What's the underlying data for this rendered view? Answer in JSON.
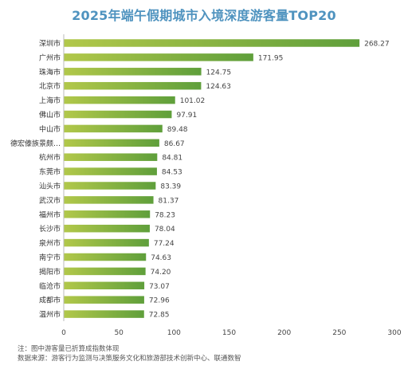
{
  "chart_data": {
    "type": "bar",
    "orientation": "horizontal",
    "title": "2025年端午假期城市入境深度游客量TOP20",
    "xlabel": "",
    "ylabel": "",
    "xlim": [
      0,
      300
    ],
    "xticks": [
      0,
      50,
      100,
      150,
      200,
      250,
      300
    ],
    "grid": false,
    "legend": "none",
    "bar_color_start": "#b2c84a",
    "bar_color_end": "#5f9f3b",
    "categories": [
      "深圳市",
      "广州市",
      "珠海市",
      "北京市",
      "上海市",
      "佛山市",
      "中山市",
      "德宏傣族景颇…",
      "杭州市",
      "东莞市",
      "汕头市",
      "武汉市",
      "福州市",
      "长沙市",
      "泉州市",
      "南宁市",
      "揭阳市",
      "临沧市",
      "成都市",
      "温州市"
    ],
    "values": [
      268.27,
      171.95,
      124.75,
      124.63,
      101.02,
      97.91,
      89.48,
      86.67,
      84.81,
      84.53,
      83.39,
      81.37,
      78.23,
      78.04,
      77.24,
      74.63,
      74.2,
      73.07,
      72.96,
      72.85
    ],
    "value_labels": [
      "268.27",
      "171.95",
      "124.75",
      "124.63",
      "101.02",
      "97.91",
      "89.48",
      "86.67",
      "84.81",
      "84.53",
      "83.39",
      "81.37",
      "78.23",
      "78.04",
      "77.24",
      "74.63",
      "74.20",
      "73.07",
      "72.96",
      "72.85"
    ]
  },
  "notes": {
    "note": "注：图中游客量已折算成指数体现",
    "source": "数据来源：游客行为监测与决策服务文化和旅游部技术创新中心、联通数智"
  }
}
